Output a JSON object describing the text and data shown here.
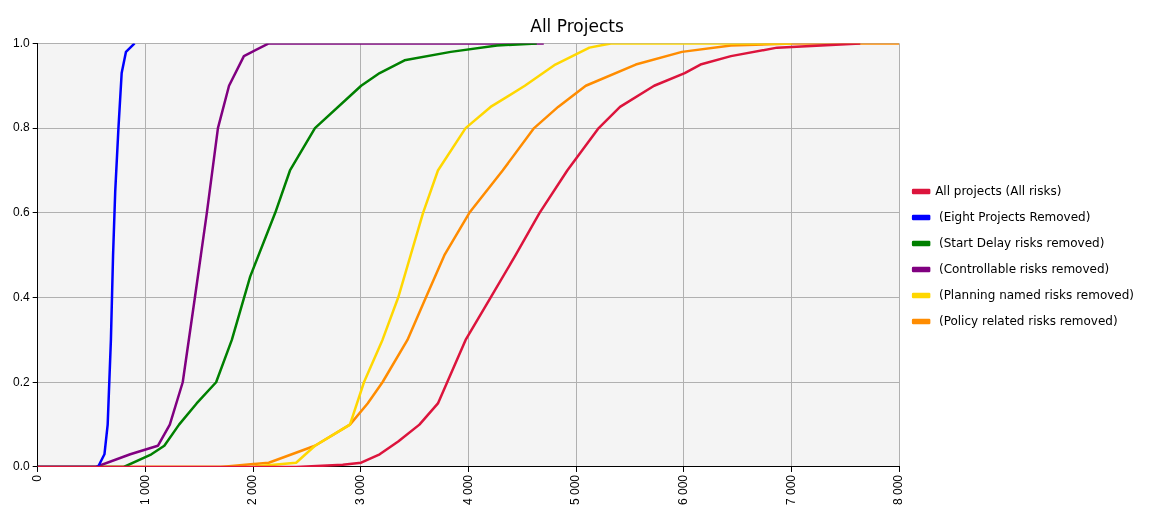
{
  "chart_data": {
    "type": "line",
    "title": "All Projects",
    "xlim": [
      0,
      8000
    ],
    "ylim": [
      0,
      1
    ],
    "xticks": [
      {
        "value": 0,
        "label": "0"
      },
      {
        "value": 1000,
        "label": "1 000"
      },
      {
        "value": 2000,
        "label": "2 000"
      },
      {
        "value": 3000,
        "label": "3 000"
      },
      {
        "value": 4000,
        "label": "4 000"
      },
      {
        "value": 5000,
        "label": "5 000"
      },
      {
        "value": 6000,
        "label": "6 000"
      },
      {
        "value": 7000,
        "label": "7 000"
      },
      {
        "value": 8000,
        "label": "8 000"
      }
    ],
    "yticks": [
      {
        "value": 0,
        "label": "0.0"
      },
      {
        "value": 0.2,
        "label": "0.2"
      },
      {
        "value": 0.4,
        "label": "0.4"
      },
      {
        "value": 0.6,
        "label": "0.6"
      },
      {
        "value": 0.8,
        "label": "0.8"
      },
      {
        "value": 1,
        "label": "1.0"
      }
    ],
    "grid": true,
    "legend": "right",
    "marker": "none",
    "line_style": "solid",
    "series": [
      {
        "name": "All projects (All risks)",
        "color": "#dc143c",
        "x": [
          0,
          2400,
          2833,
          3004,
          3176,
          3348,
          3545,
          3717,
          3803,
          3974,
          4206,
          4438,
          4661,
          4918,
          5210,
          5408,
          5725,
          6009,
          6155,
          6438,
          6867,
          7639
        ],
        "values": [
          0,
          0,
          0.005,
          0.01,
          0.03,
          0.06,
          0.1,
          0.15,
          0.2,
          0.3,
          0.4,
          0.5,
          0.6,
          0.7,
          0.8,
          0.85,
          0.9,
          0.93,
          0.95,
          0.97,
          0.99,
          1
        ]
      },
      {
        "name": " (Eight Projects Removed)",
        "color": "#0000ff",
        "x": [
          0,
          560,
          620,
          650,
          680,
          700,
          720,
          750,
          780,
          820,
          900
        ],
        "values": [
          0,
          0,
          0.03,
          0.1,
          0.3,
          0.5,
          0.65,
          0.8,
          0.93,
          0.98,
          1
        ]
      },
      {
        "name": " (Start Delay risks removed)",
        "color": "#008000",
        "x": [
          0,
          800,
          1056,
          1176,
          1313,
          1476,
          1657,
          1803,
          1974,
          2206,
          2343,
          2575,
          3004,
          3176,
          3407,
          3836,
          4266,
          4635
        ],
        "values": [
          0,
          0,
          0.03,
          0.05,
          0.1,
          0.15,
          0.2,
          0.3,
          0.45,
          0.6,
          0.7,
          0.8,
          0.9,
          0.93,
          0.96,
          0.98,
          0.995,
          1
        ]
      },
      {
        "name": " (Controllable risks removed)",
        "color": "#800080",
        "x": [
          0,
          540,
          860,
          1116,
          1227,
          1347,
          1460,
          1571,
          1674,
          1777,
          1915,
          2146,
          4700
        ],
        "values": [
          0,
          0,
          0.03,
          0.05,
          0.1,
          0.2,
          0.4,
          0.6,
          0.8,
          0.9,
          0.97,
          1,
          1
        ]
      },
      {
        "name": " (Planning named risks removed)",
        "color": "#ffd700",
        "x": [
          0,
          1974,
          2400,
          2575,
          2900,
          3030,
          3202,
          3348,
          3579,
          3717,
          3974,
          4206,
          4524,
          4807,
          5124,
          5322,
          7000
        ],
        "values": [
          0,
          0,
          0.01,
          0.05,
          0.1,
          0.2,
          0.3,
          0.4,
          0.6,
          0.7,
          0.8,
          0.85,
          0.9,
          0.95,
          0.99,
          1,
          1
        ]
      },
      {
        "name": " (Policy related risks removed)",
        "color": "#ff8c00",
        "x": [
          0,
          1700,
          2146,
          2575,
          2900,
          3064,
          3202,
          3434,
          3605,
          3777,
          4009,
          4318,
          4610,
          4833,
          5090,
          5554,
          5983,
          6438,
          7012,
          8000
        ],
        "values": [
          0,
          0,
          0.01,
          0.05,
          0.1,
          0.15,
          0.2,
          0.3,
          0.4,
          0.5,
          0.6,
          0.7,
          0.8,
          0.85,
          0.9,
          0.95,
          0.98,
          0.995,
          1,
          1
        ]
      }
    ]
  }
}
